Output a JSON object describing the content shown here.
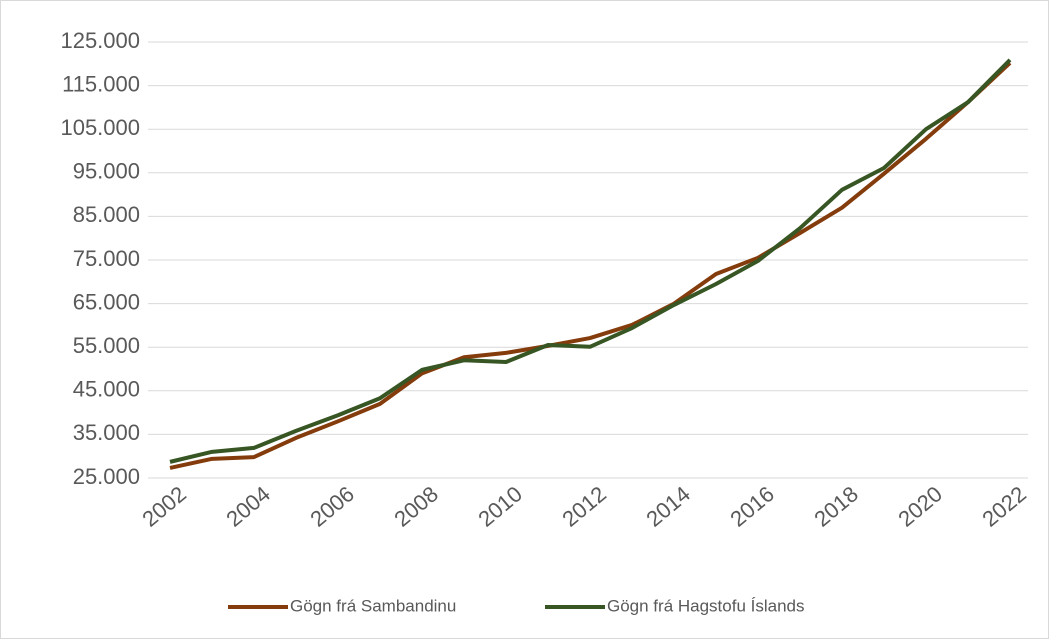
{
  "chart_data": {
    "type": "line",
    "x": [
      2002,
      2003,
      2004,
      2005,
      2006,
      2007,
      2008,
      2009,
      2010,
      2011,
      2012,
      2013,
      2014,
      2015,
      2016,
      2017,
      2018,
      2019,
      2020,
      2021,
      2022
    ],
    "series": [
      {
        "name": "Gögn frá Sambandinu",
        "color": "#843c0c",
        "values": [
          27300,
          29400,
          29800,
          34200,
          38000,
          42000,
          49000,
          52700,
          53700,
          55300,
          57100,
          60100,
          65000,
          71800,
          75500,
          81200,
          87000,
          94800,
          102800,
          111200,
          120200
        ]
      },
      {
        "name": "Gögn frá Hagstofu Íslands",
        "color": "#375623",
        "values": [
          28700,
          31000,
          31900,
          35800,
          39400,
          43300,
          49800,
          52000,
          51600,
          55500,
          55100,
          59400,
          64700,
          69500,
          74800,
          82300,
          91100,
          96100,
          105000,
          111200,
          120900
        ]
      }
    ],
    "xlim": [
      2002,
      2022
    ],
    "xticks": [
      2002,
      2004,
      2006,
      2008,
      2010,
      2012,
      2014,
      2016,
      2018,
      2020,
      2022
    ],
    "ylim": [
      25000,
      125000
    ],
    "yticks": [
      {
        "value": 25000,
        "label": "25.000"
      },
      {
        "value": 35000,
        "label": "35.000"
      },
      {
        "value": 45000,
        "label": "45.000"
      },
      {
        "value": 55000,
        "label": "55.000"
      },
      {
        "value": 65000,
        "label": "65.000"
      },
      {
        "value": 75000,
        "label": "75.000"
      },
      {
        "value": 85000,
        "label": "85.000"
      },
      {
        "value": 95000,
        "label": "95.000"
      },
      {
        "value": 105000,
        "label": "105.000"
      },
      {
        "value": 115000,
        "label": "115.000"
      },
      {
        "value": 125000,
        "label": "125.000"
      }
    ],
    "grid": true,
    "legend": "bottom"
  }
}
